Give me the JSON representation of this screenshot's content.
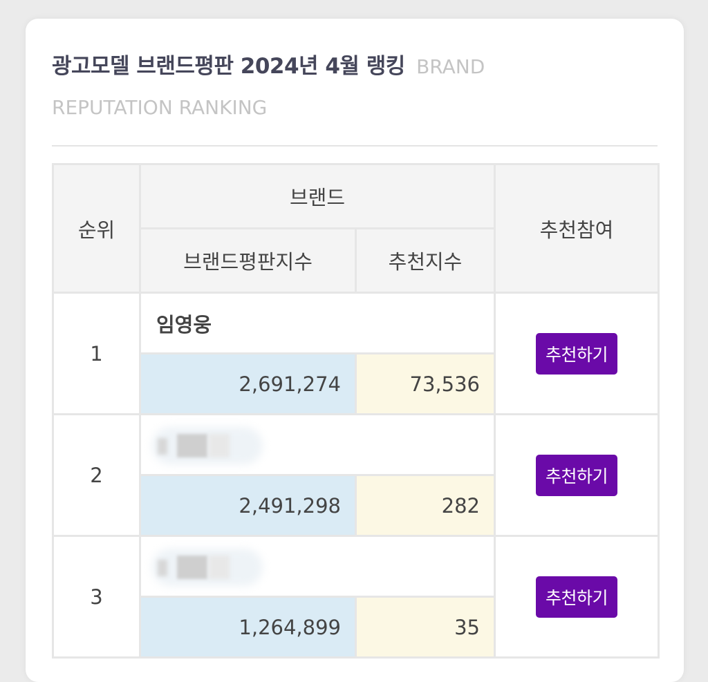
{
  "page": {
    "title": "광고모델 브랜드평판 2024년 4월 랭킹",
    "subtitle": "BRAND REPUTATION RANKING"
  },
  "table": {
    "headers": {
      "rank": "순위",
      "brand": "브랜드",
      "reputation_index": "브랜드평판지수",
      "recommend_index": "추천지수",
      "participate": "추천참여"
    },
    "rows": [
      {
        "rank": "1",
        "name": "임영웅",
        "reputation": "2,691,274",
        "recommend": "73,536",
        "button": "추천하기"
      },
      {
        "rank": "2",
        "name": "",
        "reputation": "2,491,298",
        "recommend": "282",
        "button": "추천하기"
      },
      {
        "rank": "3",
        "name": "",
        "reputation": "1,264,899",
        "recommend": "35",
        "button": "추천하기"
      }
    ]
  },
  "colors": {
    "button_bg": "#6a0aa8",
    "reputation_cell_bg": "#daebf5",
    "recommend_cell_bg": "#fcf8e4",
    "header_bg": "#f4f4f4"
  }
}
